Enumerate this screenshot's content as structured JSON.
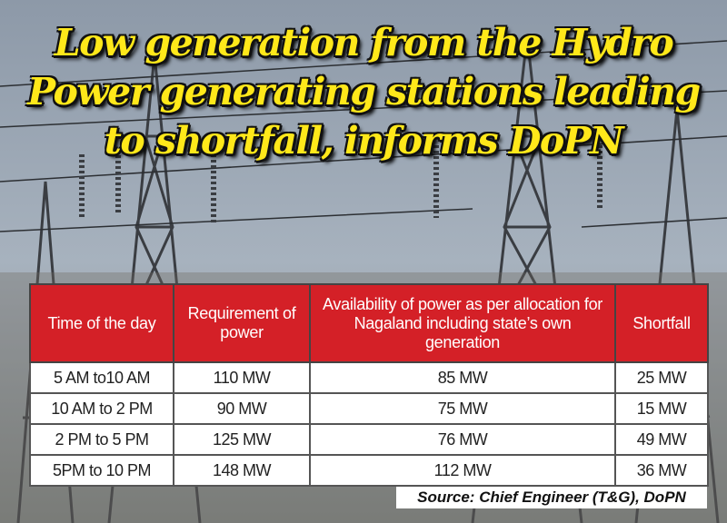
{
  "header": {
    "title_lines": [
      "Low generation from the Hydro",
      "Power generating stations leading",
      "to shortfall, informs DoPN"
    ]
  },
  "table": {
    "columns": [
      "Time of the day",
      "Requirement of power",
      "Availability of power as per allocation for Nagaland including state’s own generation",
      "Shortfall"
    ],
    "rows": [
      [
        "5 AM to10 AM",
        "110 MW",
        "85 MW",
        "25 MW"
      ],
      [
        "10 AM to 2 PM",
        "90 MW",
        "75 MW",
        "15 MW"
      ],
      [
        "2 PM to 5 PM",
        "125 MW",
        "76 MW",
        "49 MW"
      ],
      [
        "5PM to 10 PM",
        "148 MW",
        "112 MW",
        "36 MW"
      ]
    ]
  },
  "source": "Source: Chief Engineer (T&G), DoPN"
}
